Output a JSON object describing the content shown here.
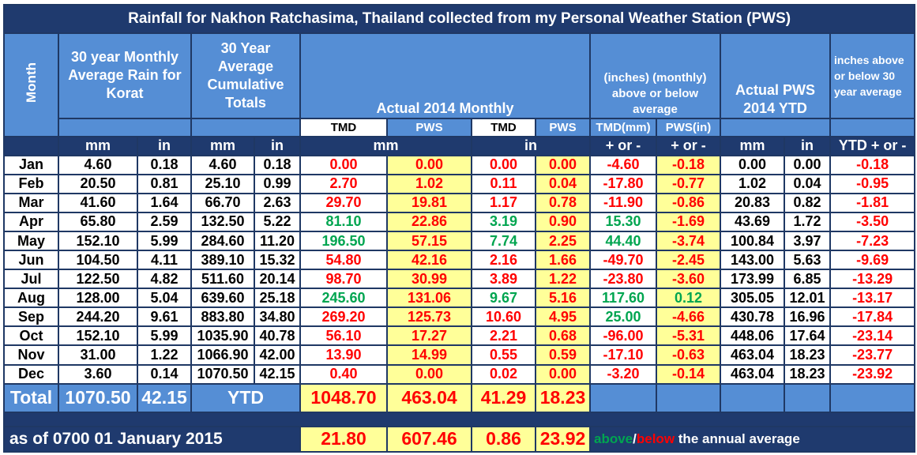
{
  "title": "Rainfall for Nakhon Ratchasima, Thailand collected from my Personal Weather Station (PWS)",
  "headers": {
    "month": "Month",
    "monthly_avg": "30 year Monthly Average Rain for Korat",
    "cumulative": "30 Year Average Cumulative Totals",
    "actual_monthly": "Actual 2014 Monthly",
    "above_below": "(inches) (monthly) above or below average",
    "actual_ytd": "Actual PWS 2014 YTD",
    "ytd_above_below": "inches above or below 30 year average",
    "tmd": "TMD",
    "pws": "PWS",
    "tmd_mm": "TMD(mm)",
    "pws_in": "PWS(in)"
  },
  "units": {
    "mm": "mm",
    "in": "in",
    "plus_minus": "+ or -",
    "ytd_plus_minus": "YTD + or -"
  },
  "rows": [
    {
      "month": "Jan",
      "avg_mm": "4.60",
      "avg_in": "0.18",
      "cum_mm": "4.60",
      "cum_in": "0.18",
      "tmd_mm": "0.00",
      "pws_mm": "0.00",
      "tmd_in": "0.00",
      "pws_in": "0.00",
      "diff_tmd": "-4.60",
      "diff_pws": "-0.18",
      "ytd_mm": "0.00",
      "ytd_in": "0.00",
      "ytd_diff": "-0.18"
    },
    {
      "month": "Feb",
      "avg_mm": "20.50",
      "avg_in": "0.81",
      "cum_mm": "25.10",
      "cum_in": "0.99",
      "tmd_mm": "2.70",
      "pws_mm": "1.02",
      "tmd_in": "0.11",
      "pws_in": "0.04",
      "diff_tmd": "-17.80",
      "diff_pws": "-0.77",
      "ytd_mm": "1.02",
      "ytd_in": "0.04",
      "ytd_diff": "-0.95"
    },
    {
      "month": "Mar",
      "avg_mm": "41.60",
      "avg_in": "1.64",
      "cum_mm": "66.70",
      "cum_in": "2.63",
      "tmd_mm": "29.70",
      "pws_mm": "19.81",
      "tmd_in": "1.17",
      "pws_in": "0.78",
      "diff_tmd": "-11.90",
      "diff_pws": "-0.86",
      "ytd_mm": "20.83",
      "ytd_in": "0.82",
      "ytd_diff": "-1.81"
    },
    {
      "month": "Apr",
      "avg_mm": "65.80",
      "avg_in": "2.59",
      "cum_mm": "132.50",
      "cum_in": "5.22",
      "tmd_mm": "81.10",
      "pws_mm": "22.86",
      "tmd_in": "3.19",
      "pws_in": "0.90",
      "diff_tmd": "15.30",
      "diff_pws": "-1.69",
      "ytd_mm": "43.69",
      "ytd_in": "1.72",
      "ytd_diff": "-3.50"
    },
    {
      "month": "May",
      "avg_mm": "152.10",
      "avg_in": "5.99",
      "cum_mm": "284.60",
      "cum_in": "11.20",
      "tmd_mm": "196.50",
      "pws_mm": "57.15",
      "tmd_in": "7.74",
      "pws_in": "2.25",
      "diff_tmd": "44.40",
      "diff_pws": "-3.74",
      "ytd_mm": "100.84",
      "ytd_in": "3.97",
      "ytd_diff": "-7.23"
    },
    {
      "month": "Jun",
      "avg_mm": "104.50",
      "avg_in": "4.11",
      "cum_mm": "389.10",
      "cum_in": "15.32",
      "tmd_mm": "54.80",
      "pws_mm": "42.16",
      "tmd_in": "2.16",
      "pws_in": "1.66",
      "diff_tmd": "-49.70",
      "diff_pws": "-2.45",
      "ytd_mm": "143.00",
      "ytd_in": "5.63",
      "ytd_diff": "-9.69"
    },
    {
      "month": "Jul",
      "avg_mm": "122.50",
      "avg_in": "4.82",
      "cum_mm": "511.60",
      "cum_in": "20.14",
      "tmd_mm": "98.70",
      "pws_mm": "30.99",
      "tmd_in": "3.89",
      "pws_in": "1.22",
      "diff_tmd": "-23.80",
      "diff_pws": "-3.60",
      "ytd_mm": "173.99",
      "ytd_in": "6.85",
      "ytd_diff": "-13.29"
    },
    {
      "month": "Aug",
      "avg_mm": "128.00",
      "avg_in": "5.04",
      "cum_mm": "639.60",
      "cum_in": "25.18",
      "tmd_mm": "245.60",
      "pws_mm": "131.06",
      "tmd_in": "9.67",
      "pws_in": "5.16",
      "diff_tmd": "117.60",
      "diff_pws": "0.12",
      "ytd_mm": "305.05",
      "ytd_in": "12.01",
      "ytd_diff": "-13.17"
    },
    {
      "month": "Sep",
      "avg_mm": "244.20",
      "avg_in": "9.61",
      "cum_mm": "883.80",
      "cum_in": "34.80",
      "tmd_mm": "269.20",
      "pws_mm": "125.73",
      "tmd_in": "10.60",
      "pws_in": "4.95",
      "diff_tmd": "25.00",
      "diff_pws": "-4.66",
      "ytd_mm": "430.78",
      "ytd_in": "16.96",
      "ytd_diff": "-17.84"
    },
    {
      "month": "Oct",
      "avg_mm": "152.10",
      "avg_in": "5.99",
      "cum_mm": "1035.90",
      "cum_in": "40.78",
      "tmd_mm": "56.10",
      "pws_mm": "17.27",
      "tmd_in": "2.21",
      "pws_in": "0.68",
      "diff_tmd": "-96.00",
      "diff_pws": "-5.31",
      "ytd_mm": "448.06",
      "ytd_in": "17.64",
      "ytd_diff": "-23.14"
    },
    {
      "month": "Nov",
      "avg_mm": "31.00",
      "avg_in": "1.22",
      "cum_mm": "1066.90",
      "cum_in": "42.00",
      "tmd_mm": "13.90",
      "pws_mm": "14.99",
      "tmd_in": "0.55",
      "pws_in": "0.59",
      "diff_tmd": "-17.10",
      "diff_pws": "-0.63",
      "ytd_mm": "463.04",
      "ytd_in": "18.23",
      "ytd_diff": "-23.77"
    },
    {
      "month": "Dec",
      "avg_mm": "3.60",
      "avg_in": "0.14",
      "cum_mm": "1070.50",
      "cum_in": "42.15",
      "tmd_mm": "0.40",
      "pws_mm": "0.00",
      "tmd_in": "0.02",
      "pws_in": "0.00",
      "diff_tmd": "-3.20",
      "diff_pws": "-0.14",
      "ytd_mm": "463.04",
      "ytd_in": "18.23",
      "ytd_diff": "-23.92"
    }
  ],
  "cell_colors": {
    "tmd_mm": [
      "red",
      "red",
      "red",
      "green",
      "green",
      "red",
      "red",
      "green",
      "red",
      "red",
      "red",
      "red"
    ],
    "pws_mm": [
      "red",
      "red",
      "red",
      "red",
      "red",
      "red",
      "red",
      "red",
      "red",
      "red",
      "red",
      "red"
    ],
    "tmd_in": [
      "red",
      "red",
      "red",
      "green",
      "green",
      "red",
      "red",
      "green",
      "red",
      "red",
      "red",
      "red"
    ],
    "pws_in": [
      "red",
      "red",
      "red",
      "red",
      "red",
      "red",
      "red",
      "red",
      "red",
      "red",
      "red",
      "red"
    ],
    "diff_tmd": [
      "red",
      "red",
      "red",
      "green",
      "green",
      "red",
      "red",
      "green",
      "green",
      "red",
      "red",
      "red"
    ],
    "diff_pws": [
      "red",
      "red",
      "red",
      "red",
      "red",
      "red",
      "red",
      "green",
      "red",
      "red",
      "red",
      "red"
    ]
  },
  "totals": {
    "label": "Total",
    "avg_mm": "1070.50",
    "avg_in": "42.15",
    "ytd_label": "YTD",
    "tmd_mm": "1048.70",
    "pws_mm": "463.04",
    "tmd_in": "41.29",
    "pws_in": "18.23"
  },
  "as_of": {
    "label": "as of 0700 01 January 2015",
    "tmd_mm": "21.80",
    "pws_mm": "607.46",
    "tmd_in": "0.86",
    "pws_in": "23.92",
    "note_above": "above",
    "note_slash": "/",
    "note_below": "below",
    "note_rest": " the annual average"
  },
  "colors": {
    "dark_blue": "#1f3a6e",
    "mid_blue": "#558ed5",
    "yellow": "#ffff99",
    "red": "#ff0000",
    "green": "#00a550"
  }
}
